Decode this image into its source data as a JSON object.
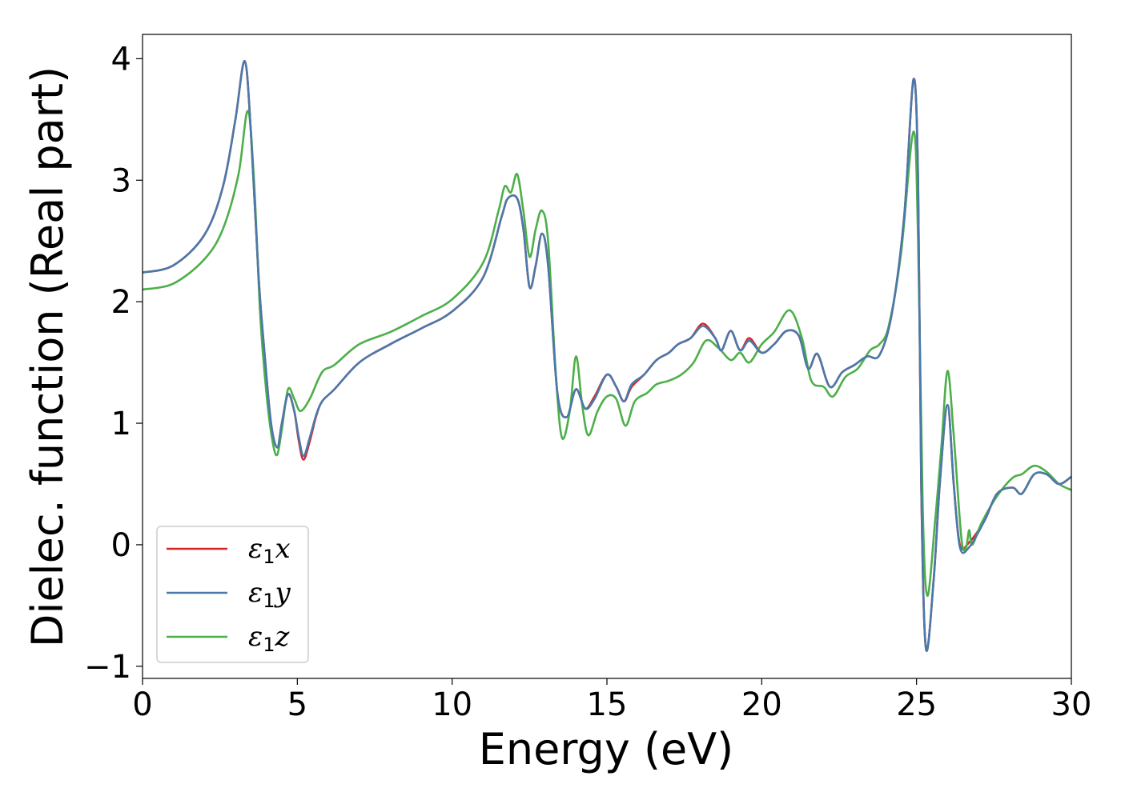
{
  "chart_data": {
    "type": "line",
    "title": "",
    "xlabel": "Energy (eV)",
    "ylabel": "Dielec. function (Real part)",
    "xlim": [
      0,
      30
    ],
    "ylim": [
      -1.1,
      4.2
    ],
    "xticks": [
      0,
      5,
      10,
      15,
      20,
      25,
      30
    ],
    "xtick_labels": [
      "0",
      "5",
      "10",
      "15",
      "20",
      "25",
      "30"
    ],
    "yticks": [
      -1,
      0,
      1,
      2,
      3,
      4
    ],
    "ytick_labels": [
      "−1",
      "0",
      "1",
      "2",
      "3",
      "4"
    ],
    "grid": false,
    "legend_position": "lower-left",
    "series": [
      {
        "name": "ε₁x",
        "legend_main": "ε",
        "legend_sub": "1",
        "legend_var": "x",
        "color": "#d62728",
        "points": [
          [
            0,
            2.24
          ],
          [
            1,
            2.3
          ],
          [
            2,
            2.55
          ],
          [
            2.6,
            2.95
          ],
          [
            3.0,
            3.5
          ],
          [
            3.3,
            3.98
          ],
          [
            3.5,
            3.4
          ],
          [
            3.75,
            2.2
          ],
          [
            3.95,
            1.55
          ],
          [
            4.15,
            1.0
          ],
          [
            4.35,
            0.8
          ],
          [
            4.5,
            1.0
          ],
          [
            4.7,
            1.24
          ],
          [
            4.9,
            1.1
          ],
          [
            5.05,
            0.85
          ],
          [
            5.2,
            0.7
          ],
          [
            5.4,
            0.85
          ],
          [
            5.6,
            1.05
          ],
          [
            5.8,
            1.18
          ],
          [
            6.2,
            1.28
          ],
          [
            7,
            1.5
          ],
          [
            8,
            1.65
          ],
          [
            9,
            1.78
          ],
          [
            10,
            1.92
          ],
          [
            11,
            2.2
          ],
          [
            11.6,
            2.7
          ],
          [
            11.8,
            2.85
          ],
          [
            12.1,
            2.85
          ],
          [
            12.3,
            2.6
          ],
          [
            12.5,
            2.12
          ],
          [
            12.7,
            2.3
          ],
          [
            12.9,
            2.56
          ],
          [
            13.1,
            2.3
          ],
          [
            13.4,
            1.25
          ],
          [
            13.7,
            1.05
          ],
          [
            14.0,
            1.28
          ],
          [
            14.3,
            1.12
          ],
          [
            14.6,
            1.22
          ],
          [
            15.0,
            1.4
          ],
          [
            15.3,
            1.3
          ],
          [
            15.55,
            1.18
          ],
          [
            15.8,
            1.3
          ],
          [
            16.2,
            1.4
          ],
          [
            16.6,
            1.52
          ],
          [
            17.0,
            1.58
          ],
          [
            17.3,
            1.65
          ],
          [
            17.7,
            1.7
          ],
          [
            18.1,
            1.82
          ],
          [
            18.5,
            1.7
          ],
          [
            18.7,
            1.6
          ],
          [
            19.0,
            1.76
          ],
          [
            19.3,
            1.6
          ],
          [
            19.6,
            1.7
          ],
          [
            20.0,
            1.58
          ],
          [
            20.4,
            1.65
          ],
          [
            20.8,
            1.76
          ],
          [
            21.2,
            1.72
          ],
          [
            21.5,
            1.45
          ],
          [
            21.8,
            1.57
          ],
          [
            22.2,
            1.3
          ],
          [
            22.6,
            1.42
          ],
          [
            23.0,
            1.48
          ],
          [
            23.4,
            1.55
          ],
          [
            23.8,
            1.56
          ],
          [
            24.2,
            1.9
          ],
          [
            24.6,
            2.7
          ],
          [
            24.9,
            3.83
          ],
          [
            25.05,
            3.0
          ],
          [
            25.15,
            0.5
          ],
          [
            25.3,
            -0.85
          ],
          [
            25.55,
            -0.3
          ],
          [
            25.75,
            0.5
          ],
          [
            26.0,
            1.15
          ],
          [
            26.2,
            0.5
          ],
          [
            26.4,
            0.0
          ],
          [
            26.7,
            0.02
          ],
          [
            27.2,
            0.2
          ],
          [
            27.6,
            0.42
          ],
          [
            28.1,
            0.47
          ],
          [
            28.4,
            0.42
          ],
          [
            28.8,
            0.58
          ],
          [
            29.2,
            0.58
          ],
          [
            29.6,
            0.5
          ],
          [
            30,
            0.56
          ]
        ]
      },
      {
        "name": "ε₁y",
        "legend_main": "ε",
        "legend_sub": "1",
        "legend_var": "y",
        "color": "#4a79aa",
        "points": [
          [
            0,
            2.24
          ],
          [
            1,
            2.3
          ],
          [
            2,
            2.55
          ],
          [
            2.6,
            2.95
          ],
          [
            3.0,
            3.5
          ],
          [
            3.3,
            3.98
          ],
          [
            3.5,
            3.4
          ],
          [
            3.75,
            2.2
          ],
          [
            3.95,
            1.55
          ],
          [
            4.15,
            1.0
          ],
          [
            4.35,
            0.8
          ],
          [
            4.5,
            1.0
          ],
          [
            4.7,
            1.24
          ],
          [
            4.9,
            1.1
          ],
          [
            5.05,
            0.88
          ],
          [
            5.2,
            0.73
          ],
          [
            5.4,
            0.88
          ],
          [
            5.6,
            1.06
          ],
          [
            5.8,
            1.18
          ],
          [
            6.2,
            1.28
          ],
          [
            7,
            1.5
          ],
          [
            8,
            1.65
          ],
          [
            9,
            1.78
          ],
          [
            10,
            1.92
          ],
          [
            11,
            2.2
          ],
          [
            11.6,
            2.7
          ],
          [
            11.8,
            2.85
          ],
          [
            12.1,
            2.85
          ],
          [
            12.3,
            2.6
          ],
          [
            12.5,
            2.12
          ],
          [
            12.7,
            2.3
          ],
          [
            12.9,
            2.56
          ],
          [
            13.1,
            2.3
          ],
          [
            13.4,
            1.25
          ],
          [
            13.7,
            1.05
          ],
          [
            14.0,
            1.28
          ],
          [
            14.3,
            1.12
          ],
          [
            14.6,
            1.2
          ],
          [
            15.0,
            1.4
          ],
          [
            15.3,
            1.3
          ],
          [
            15.55,
            1.18
          ],
          [
            15.8,
            1.32
          ],
          [
            16.2,
            1.4
          ],
          [
            16.6,
            1.52
          ],
          [
            17.0,
            1.58
          ],
          [
            17.3,
            1.65
          ],
          [
            17.7,
            1.7
          ],
          [
            18.1,
            1.8
          ],
          [
            18.5,
            1.7
          ],
          [
            18.7,
            1.6
          ],
          [
            19.0,
            1.76
          ],
          [
            19.3,
            1.6
          ],
          [
            19.6,
            1.68
          ],
          [
            20.0,
            1.58
          ],
          [
            20.4,
            1.65
          ],
          [
            20.8,
            1.76
          ],
          [
            21.2,
            1.72
          ],
          [
            21.5,
            1.45
          ],
          [
            21.8,
            1.57
          ],
          [
            22.2,
            1.3
          ],
          [
            22.6,
            1.42
          ],
          [
            23.0,
            1.48
          ],
          [
            23.4,
            1.55
          ],
          [
            23.8,
            1.56
          ],
          [
            24.2,
            1.9
          ],
          [
            24.6,
            2.7
          ],
          [
            24.9,
            3.83
          ],
          [
            25.05,
            3.0
          ],
          [
            25.15,
            0.5
          ],
          [
            25.3,
            -0.85
          ],
          [
            25.55,
            -0.3
          ],
          [
            25.75,
            0.5
          ],
          [
            26.0,
            1.15
          ],
          [
            26.2,
            0.5
          ],
          [
            26.4,
            -0.02
          ],
          [
            26.7,
            -0.02
          ],
          [
            27.2,
            0.2
          ],
          [
            27.6,
            0.42
          ],
          [
            28.1,
            0.47
          ],
          [
            28.4,
            0.42
          ],
          [
            28.8,
            0.58
          ],
          [
            29.2,
            0.58
          ],
          [
            29.6,
            0.5
          ],
          [
            30,
            0.56
          ]
        ]
      },
      {
        "name": "ε₁z",
        "legend_main": "ε",
        "legend_sub": "1",
        "legend_var": "z",
        "color": "#4daf4a",
        "points": [
          [
            0,
            2.1
          ],
          [
            1,
            2.15
          ],
          [
            2,
            2.35
          ],
          [
            2.6,
            2.6
          ],
          [
            3.1,
            3.05
          ],
          [
            3.4,
            3.57
          ],
          [
            3.6,
            3.0
          ],
          [
            3.8,
            1.9
          ],
          [
            4.0,
            1.25
          ],
          [
            4.2,
            0.85
          ],
          [
            4.35,
            0.74
          ],
          [
            4.5,
            0.95
          ],
          [
            4.7,
            1.28
          ],
          [
            4.9,
            1.2
          ],
          [
            5.1,
            1.1
          ],
          [
            5.4,
            1.2
          ],
          [
            5.8,
            1.42
          ],
          [
            6.2,
            1.48
          ],
          [
            7,
            1.65
          ],
          [
            8,
            1.75
          ],
          [
            9,
            1.88
          ],
          [
            10,
            2.02
          ],
          [
            11,
            2.32
          ],
          [
            11.5,
            2.75
          ],
          [
            11.7,
            2.95
          ],
          [
            11.9,
            2.9
          ],
          [
            12.1,
            3.05
          ],
          [
            12.3,
            2.75
          ],
          [
            12.5,
            2.37
          ],
          [
            12.7,
            2.6
          ],
          [
            12.9,
            2.75
          ],
          [
            13.1,
            2.5
          ],
          [
            13.35,
            1.4
          ],
          [
            13.55,
            0.88
          ],
          [
            13.8,
            1.1
          ],
          [
            14.0,
            1.55
          ],
          [
            14.2,
            1.15
          ],
          [
            14.4,
            0.9
          ],
          [
            14.7,
            1.1
          ],
          [
            15.0,
            1.22
          ],
          [
            15.3,
            1.2
          ],
          [
            15.6,
            0.98
          ],
          [
            15.9,
            1.18
          ],
          [
            16.3,
            1.25
          ],
          [
            16.6,
            1.32
          ],
          [
            17.0,
            1.35
          ],
          [
            17.4,
            1.4
          ],
          [
            17.8,
            1.5
          ],
          [
            18.2,
            1.68
          ],
          [
            18.6,
            1.62
          ],
          [
            19.0,
            1.52
          ],
          [
            19.3,
            1.58
          ],
          [
            19.6,
            1.5
          ],
          [
            20.0,
            1.65
          ],
          [
            20.4,
            1.75
          ],
          [
            20.9,
            1.93
          ],
          [
            21.3,
            1.7
          ],
          [
            21.6,
            1.35
          ],
          [
            22.0,
            1.3
          ],
          [
            22.3,
            1.22
          ],
          [
            22.7,
            1.38
          ],
          [
            23.1,
            1.45
          ],
          [
            23.5,
            1.6
          ],
          [
            23.8,
            1.65
          ],
          [
            24.1,
            1.8
          ],
          [
            24.5,
            2.4
          ],
          [
            24.9,
            3.4
          ],
          [
            25.05,
            2.5
          ],
          [
            25.2,
            0.3
          ],
          [
            25.35,
            -0.42
          ],
          [
            25.6,
            0.2
          ],
          [
            25.8,
            0.8
          ],
          [
            26.0,
            1.43
          ],
          [
            26.2,
            0.9
          ],
          [
            26.45,
            0.05
          ],
          [
            26.6,
            -0.02
          ],
          [
            26.7,
            0.12
          ],
          [
            26.8,
            0.0
          ],
          [
            27.1,
            0.18
          ],
          [
            27.6,
            0.4
          ],
          [
            28.1,
            0.55
          ],
          [
            28.4,
            0.58
          ],
          [
            28.8,
            0.65
          ],
          [
            29.2,
            0.6
          ],
          [
            29.6,
            0.5
          ],
          [
            30,
            0.45
          ]
        ]
      }
    ]
  }
}
